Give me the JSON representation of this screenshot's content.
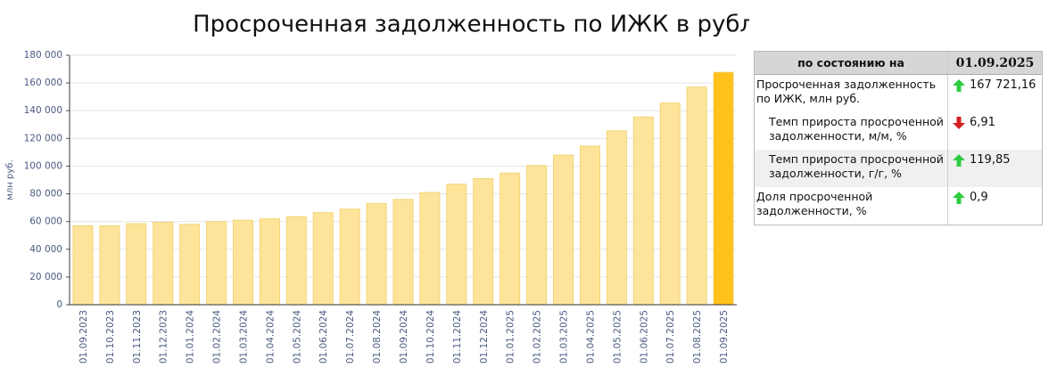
{
  "chart_data": {
    "type": "bar",
    "title": "Просроченная задолженность по ИЖК в рублях, ЦБ РФ",
    "y_label": "млн руб.",
    "categories": [
      "01.09.2023",
      "01.10.2023",
      "01.11.2023",
      "01.12.2023",
      "01.01.2024",
      "01.02.2024",
      "01.03.2024",
      "01.04.2024",
      "01.05.2024",
      "01.06.2024",
      "01.07.2024",
      "01.08.2024",
      "01.09.2024",
      "01.10.2024",
      "01.11.2024",
      "01.12.2024",
      "01.01.2025",
      "01.02.2025",
      "01.03.2025",
      "01.04.2025",
      "01.05.2025",
      "01.06.2025",
      "01.07.2025",
      "01.08.2025",
      "01.09.2025"
    ],
    "values": [
      57000,
      57000,
      58500,
      59500,
      58000,
      60000,
      61000,
      62000,
      63500,
      66500,
      69000,
      73000,
      76000,
      81000,
      87000,
      91000,
      95000,
      100500,
      108000,
      114500,
      125500,
      135500,
      145500,
      157000,
      167721.16
    ],
    "colors": [
      "#fde49a",
      "#fde49a",
      "#fde49a",
      "#fde49a",
      "#fde49a",
      "#fde49a",
      "#fde49a",
      "#fde49a",
      "#fde49a",
      "#fde49a",
      "#fde49a",
      "#fde49a",
      "#fde49a",
      "#fde49a",
      "#fde49a",
      "#fde49a",
      "#fde49a",
      "#fde49a",
      "#fde49a",
      "#fde49a",
      "#fde49a",
      "#fde49a",
      "#fde49a",
      "#fde49a",
      "#ffc11a"
    ],
    "ylim": [
      0,
      180000
    ],
    "yticks": [
      0,
      {
        "value": 20000,
        "label": "20 000"
      },
      {
        "value": 40000,
        "label": "40 000"
      },
      {
        "value": 60000,
        "label": "60 000"
      },
      {
        "value": 80000,
        "label": "80 000"
      },
      {
        "value": 100000,
        "label": "100 000"
      },
      {
        "value": 120000,
        "label": "120 000"
      },
      {
        "value": 140000,
        "label": "140 000"
      },
      {
        "value": 160000,
        "label": "160 000"
      },
      {
        "value": 180000,
        "label": "180 000"
      }
    ],
    "grid": true
  },
  "table": {
    "header": [
      "по состоянию на",
      "01.09.2025"
    ],
    "rows": [
      {
        "label": "Просроченная задолженность по ИЖК, млн руб.",
        "direction": "up",
        "value": "167 721,16"
      },
      {
        "label": "Темп прироста просроченной задолженности, м/м, %",
        "direction": "down",
        "value": "6,91"
      },
      {
        "label": "Темп прироста просроченной задолженности, г/г, %",
        "direction": "up",
        "value": "119,85"
      },
      {
        "label": "Доля просроченной задолженности, %",
        "direction": "up",
        "value": "0,9"
      }
    ]
  }
}
